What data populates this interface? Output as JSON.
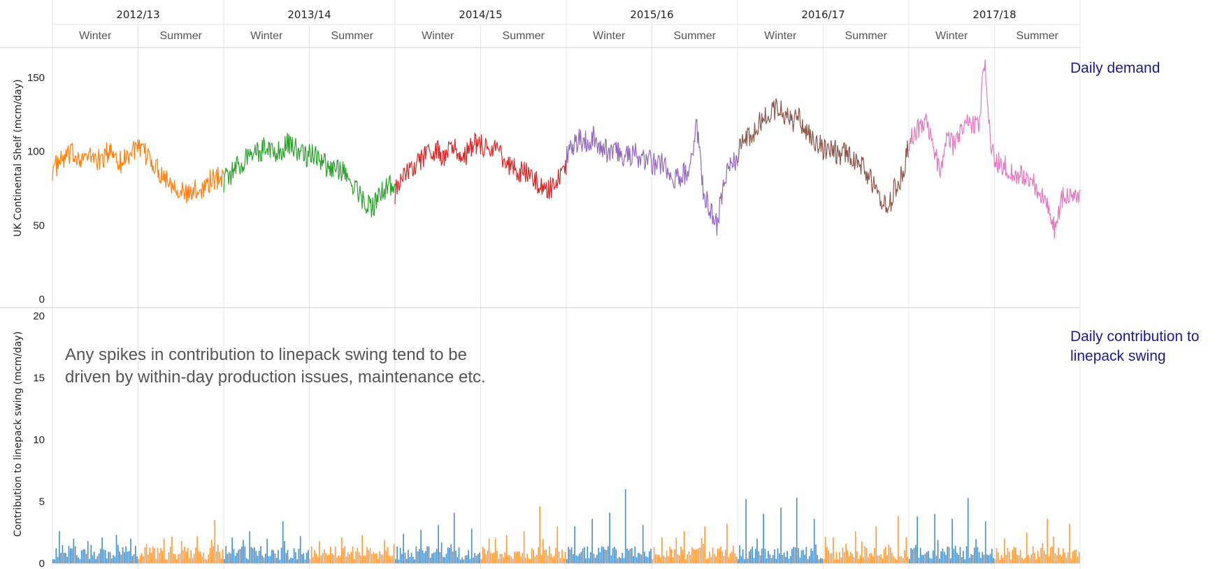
{
  "chart_data": [
    {
      "type": "line",
      "name": "demand",
      "ylabel": "UK Continental Shelf (mcm/day)",
      "ylim": [
        0,
        160
      ],
      "yticks": [
        0,
        50,
        100,
        150
      ],
      "grid": true,
      "side_label": "Daily demand",
      "x_headers": {
        "years": [
          "2012/13",
          "2013/14",
          "2014/15",
          "2015/16",
          "2016/17",
          "2017/18"
        ],
        "seasons": [
          "Winter",
          "Summer",
          "Winter",
          "Summer",
          "Winter",
          "Summer",
          "Winter",
          "Summer",
          "Winter",
          "Summer",
          "Winter",
          "Summer"
        ]
      },
      "series": [
        {
          "period": "2012/13",
          "color": "#ff7f0e",
          "values": [
            88,
            92,
            96,
            98,
            97,
            95,
            97,
            93,
            99,
            100,
            92,
            98,
            102,
            99,
            97,
            90,
            85,
            80,
            78,
            72,
            70,
            74,
            76,
            80,
            82,
            84
          ]
        },
        {
          "period": "2013/14",
          "color": "#2ca02c",
          "values": [
            80,
            85,
            90,
            96,
            102,
            100,
            105,
            98,
            103,
            106,
            100,
            96,
            98,
            92,
            90,
            88,
            86,
            80,
            72,
            66,
            62,
            70,
            76,
            80
          ]
        },
        {
          "period": "2014/15",
          "color": "#d62728",
          "values": [
            72,
            80,
            88,
            92,
            96,
            98,
            100,
            96,
            102,
            100,
            98,
            104,
            106,
            102,
            100,
            96,
            92,
            88,
            86,
            82,
            78,
            74,
            76,
            84,
            88
          ]
        },
        {
          "period": "2015/16",
          "color": "#9467bd",
          "values": [
            96,
            104,
            108,
            106,
            110,
            104,
            100,
            102,
            98,
            96,
            100,
            94,
            96,
            90,
            92,
            86,
            80,
            84,
            88,
            118,
            74,
            60,
            50,
            80,
            90,
            96
          ]
        },
        {
          "period": "2016/17",
          "color": "#8c564b",
          "values": [
            100,
            106,
            112,
            118,
            124,
            128,
            130,
            124,
            120,
            122,
            116,
            110,
            104,
            100,
            102,
            96,
            100,
            94,
            90,
            84,
            78,
            66,
            60,
            76,
            84,
            104
          ]
        },
        {
          "period": "2017/18",
          "color": "#e377c2",
          "values": [
            108,
            112,
            120,
            118,
            100,
            84,
            110,
            104,
            114,
            118,
            116,
            120,
            160,
            102,
            92,
            90,
            86,
            84,
            82,
            80,
            76,
            70,
            62,
            48,
            66,
            72,
            70,
            68
          ]
        }
      ]
    },
    {
      "type": "bar",
      "name": "swing",
      "ylabel": "Contribution to linepack swing (mcm/day)",
      "ylim": [
        0,
        20
      ],
      "yticks": [
        0,
        5,
        10,
        15,
        20
      ],
      "grid": true,
      "side_label": [
        "Daily contribution to",
        "linepack swing"
      ],
      "annotation": [
        "Any spikes in contribution to linepack swing tend to be",
        "driven by within-day production issues, maintenance etc."
      ],
      "series": [
        {
          "name": "Winter",
          "color": "#4a90c8"
        },
        {
          "name": "Summer",
          "color": "#ff9b3b"
        }
      ],
      "peaks": [
        {
          "season_index": 0,
          "values": [
            2.6,
            2.0,
            1.8,
            2.1,
            2.3,
            2.0
          ]
        },
        {
          "season_index": 1,
          "values": [
            1.6,
            2.0,
            1.8,
            2.2,
            3.5
          ]
        },
        {
          "season_index": 2,
          "values": [
            2.1,
            2.6,
            2.0,
            3.4,
            2.2
          ]
        },
        {
          "season_index": 3,
          "values": [
            1.8,
            2.1,
            2.3,
            1.9
          ]
        },
        {
          "season_index": 4,
          "values": [
            2.4,
            2.7,
            3.1,
            4.1,
            2.8
          ]
        },
        {
          "season_index": 5,
          "values": [
            2.0,
            2.3,
            2.6,
            4.6,
            3.0
          ]
        },
        {
          "season_index": 6,
          "values": [
            3.0,
            3.6,
            4.1,
            6.0,
            3.1
          ]
        },
        {
          "season_index": 7,
          "values": [
            2.1,
            2.6,
            3.0,
            3.2
          ]
        },
        {
          "season_index": 8,
          "values": [
            5.2,
            4.0,
            4.5,
            5.3,
            3.6
          ]
        },
        {
          "season_index": 9,
          "values": [
            2.1,
            2.6,
            3.0,
            3.8
          ]
        },
        {
          "season_index": 10,
          "values": [
            3.8,
            4.0,
            3.6,
            5.3,
            3.4
          ]
        },
        {
          "season_index": 11,
          "values": [
            2.0,
            2.5,
            3.6,
            3.2
          ]
        }
      ]
    }
  ]
}
